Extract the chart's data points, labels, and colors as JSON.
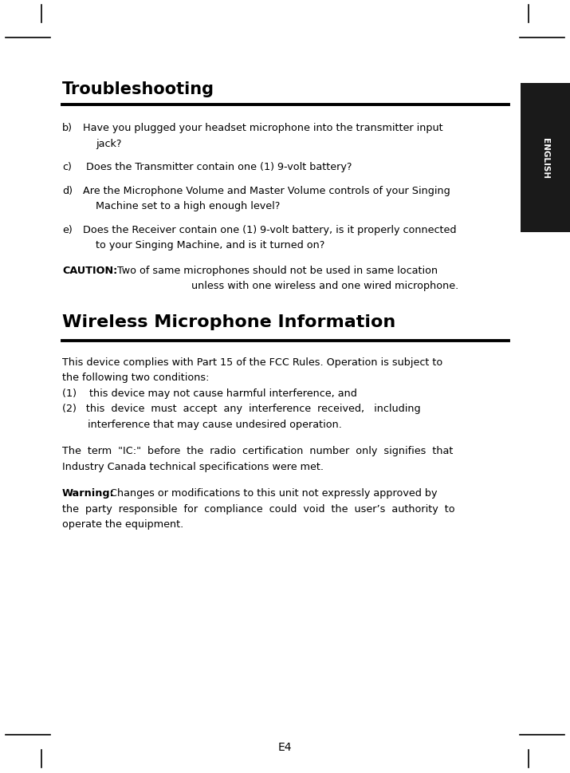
{
  "bg_color": "#ffffff",
  "page_width": 7.15,
  "page_height": 9.7,
  "dpi": 100,
  "ml": 0.78,
  "mr_edge": 6.38,
  "english_tab_color": "#1a1a1a",
  "english_tab_text": "ENGLISH",
  "troubleshooting_title": "Troubleshooting",
  "wireless_title": "Wireless Microphone Information",
  "caution_bold": "CAUTION:",
  "caution_line1": " Two of same microphones should not be used in same location",
  "caution_line2": "unless with one wireless and one wired microphone.",
  "fcc_line1": "This device complies with Part 15 of the FCC Rules. Operation is subject to",
  "fcc_line2": "the following two conditions:",
  "fcc_line3": "(1)    this device may not cause harmful interference, and",
  "fcc_line4": "(2)   this  device  must  accept  any  interference  received,   including",
  "fcc_line5": "        interference that may cause undesired operation.",
  "ic_line1": "The  term  \"IC:\"  before  the  radio  certification  number  only  signifies  that",
  "ic_line2": "Industry Canada technical specifications were met.",
  "warning_bold": "Warning:",
  "warning_line1": " Changes or modifications to this unit not expressly approved by",
  "warning_line2": "the  party  responsible  for  compliance  could  void  the  user’s  authority  to",
  "warning_line3": "operate the equipment.",
  "footer": "E4",
  "items": [
    {
      "label": "b)",
      "line1": "Have you plugged your headset microphone into the transmitter input",
      "line2": "jack?"
    },
    {
      "label": "c)",
      "line1": " Does the Transmitter contain one (1) 9-volt battery?",
      "line2": ""
    },
    {
      "label": "d)",
      "line1": "Are the Microphone Volume and Master Volume controls of your Singing",
      "line2": "Machine set to a high enough level?"
    },
    {
      "label": "e)",
      "line1": "Does the Receiver contain one (1) 9-volt battery, is it properly connected",
      "line2": "to your Singing Machine, and is it turned on?"
    }
  ],
  "title_fs": 15,
  "wireless_fs": 16,
  "body_fs": 9.2,
  "english_fs": 7.5,
  "footer_fs": 10
}
